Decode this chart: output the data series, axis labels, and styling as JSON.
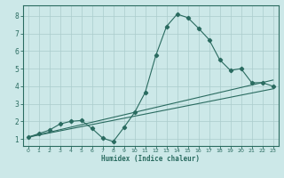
{
  "xlabel": "Humidex (Indice chaleur)",
  "bg_color": "#cce8e8",
  "grid_color": "#aacccc",
  "line_color": "#2a6b60",
  "xlim": [
    -0.5,
    23.5
  ],
  "ylim": [
    0.6,
    8.6
  ],
  "xticks": [
    0,
    1,
    2,
    3,
    4,
    5,
    6,
    7,
    8,
    9,
    10,
    11,
    12,
    13,
    14,
    15,
    16,
    17,
    18,
    19,
    20,
    21,
    22,
    23
  ],
  "yticks": [
    1,
    2,
    3,
    4,
    5,
    6,
    7,
    8
  ],
  "curve1_x": [
    0,
    1,
    2,
    3,
    4,
    5,
    6,
    7,
    8,
    9,
    10,
    11,
    12,
    13,
    14,
    15,
    16,
    17,
    18,
    19,
    20,
    21,
    22,
    23
  ],
  "curve1_y": [
    1.1,
    1.3,
    1.5,
    1.85,
    2.0,
    2.05,
    1.6,
    1.05,
    0.85,
    1.65,
    2.5,
    3.65,
    5.75,
    7.4,
    8.1,
    7.9,
    7.3,
    6.65,
    5.5,
    4.9,
    5.0,
    4.2,
    4.2,
    4.0
  ],
  "line1_x": [
    0,
    23
  ],
  "line1_y": [
    1.1,
    4.35
  ],
  "line2_x": [
    0,
    23
  ],
  "line2_y": [
    1.1,
    3.85
  ]
}
